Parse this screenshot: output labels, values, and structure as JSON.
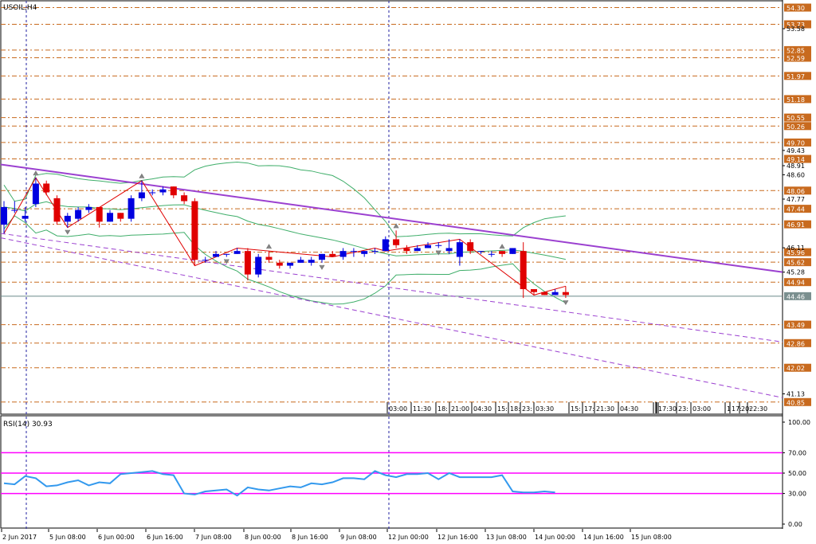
{
  "main_title": "USOIL,H4",
  "rsi_title": "RSI(14) 30.93",
  "colors": {
    "bull": "#0000e0",
    "bear": "#e00000",
    "trend": "#9b40d0",
    "bands": "#3fae6a",
    "rsi_line": "#3399ee",
    "rsi_levels": "#ff00ff",
    "level_lines": "#c86a1e",
    "price_tag": "#c86a1e",
    "grid": "#2020a0"
  },
  "price_axis": {
    "tags": [
      "54.30",
      "53.73",
      "52.85",
      "52.59",
      "51.97",
      "51.18",
      "50.55",
      "50.26",
      "49.70",
      "49.14",
      "48.06",
      "47.44",
      "46.91",
      "45.96",
      "45.62",
      "44.94",
      "43.49",
      "42.86",
      "42.02",
      "40.85"
    ],
    "plain": [
      "53.58",
      "49.43",
      "48.91",
      "48.60",
      "47.77",
      "46.11",
      "45.28",
      "41.13"
    ],
    "current": "44.46"
  },
  "rsi_axis": [
    "100.00",
    "70.00",
    "50.00",
    "30.00",
    "0.00"
  ],
  "session_labels": [
    "03:00",
    "11:30",
    "18:",
    "21:00",
    "04:30",
    "15:",
    "18:",
    "23:",
    "03:30",
    "15:",
    "17:",
    "21:30",
    "04:30",
    "17:30",
    "23:",
    "03:00",
    "1",
    "17:",
    "20:",
    "22:30"
  ],
  "time_axis": [
    "2 Jun 2017",
    "5 Jun 08:00",
    "6 Jun 00:00",
    "6 Jun 16:00",
    "7 Jun 08:00",
    "8 Jun 00:00",
    "8 Jun 16:00",
    "9 Jun 08:00",
    "12 Jun 00:00",
    "12 Jun 16:00",
    "13 Jun 08:00",
    "14 Jun 00:00",
    "14 Jun 16:00",
    "15 Jun 08:00"
  ],
  "chart_data": {
    "type": "candlestick",
    "symbol": "USOIL",
    "timeframe": "H4",
    "candles": [
      {
        "o": 46.9,
        "h": 47.7,
        "l": 46.6,
        "c": 47.5
      },
      {
        "o": 47.4,
        "h": 47.7,
        "l": 47.3,
        "c": 47.4
      },
      {
        "o": 47.1,
        "h": 47.5,
        "l": 47.0,
        "c": 47.2
      },
      {
        "o": 47.6,
        "h": 48.5,
        "l": 47.5,
        "c": 48.3
      },
      {
        "o": 48.3,
        "h": 48.4,
        "l": 47.9,
        "c": 48.0
      },
      {
        "o": 47.8,
        "h": 47.9,
        "l": 46.9,
        "c": 47.0
      },
      {
        "o": 47.0,
        "h": 47.3,
        "l": 46.8,
        "c": 47.2
      },
      {
        "o": 47.1,
        "h": 47.5,
        "l": 47.0,
        "c": 47.4
      },
      {
        "o": 47.4,
        "h": 47.6,
        "l": 47.3,
        "c": 47.5
      },
      {
        "o": 47.5,
        "h": 47.5,
        "l": 46.8,
        "c": 47.0
      },
      {
        "o": 47.0,
        "h": 47.4,
        "l": 47.0,
        "c": 47.3
      },
      {
        "o": 47.3,
        "h": 47.3,
        "l": 47.0,
        "c": 47.1
      },
      {
        "o": 47.1,
        "h": 47.9,
        "l": 47.0,
        "c": 47.8
      },
      {
        "o": 47.8,
        "h": 48.4,
        "l": 47.7,
        "c": 48.0
      },
      {
        "o": 48.0,
        "h": 48.1,
        "l": 47.9,
        "c": 48.0
      },
      {
        "o": 48.0,
        "h": 48.2,
        "l": 47.9,
        "c": 48.1
      },
      {
        "o": 48.2,
        "h": 48.2,
        "l": 47.8,
        "c": 47.9
      },
      {
        "o": 47.9,
        "h": 48.0,
        "l": 47.6,
        "c": 47.7
      },
      {
        "o": 47.7,
        "h": 47.8,
        "l": 45.5,
        "c": 45.7
      },
      {
        "o": 45.7,
        "h": 45.8,
        "l": 45.6,
        "c": 45.7
      },
      {
        "o": 45.8,
        "h": 46.0,
        "l": 45.8,
        "c": 45.9
      },
      {
        "o": 45.9,
        "h": 45.9,
        "l": 45.8,
        "c": 45.9
      },
      {
        "o": 45.9,
        "h": 46.1,
        "l": 45.9,
        "c": 46.0
      },
      {
        "o": 46.0,
        "h": 46.1,
        "l": 45.0,
        "c": 45.2
      },
      {
        "o": 45.2,
        "h": 45.9,
        "l": 45.1,
        "c": 45.8
      },
      {
        "o": 45.8,
        "h": 46.0,
        "l": 45.6,
        "c": 45.7
      },
      {
        "o": 45.6,
        "h": 45.7,
        "l": 45.4,
        "c": 45.5
      },
      {
        "o": 45.5,
        "h": 45.6,
        "l": 45.4,
        "c": 45.6
      },
      {
        "o": 45.6,
        "h": 45.8,
        "l": 45.6,
        "c": 45.7
      },
      {
        "o": 45.6,
        "h": 45.8,
        "l": 45.5,
        "c": 45.7
      },
      {
        "o": 45.7,
        "h": 45.9,
        "l": 45.6,
        "c": 45.9
      },
      {
        "o": 45.9,
        "h": 46.0,
        "l": 45.8,
        "c": 45.8
      },
      {
        "o": 45.8,
        "h": 46.1,
        "l": 45.7,
        "c": 46.0
      },
      {
        "o": 46.0,
        "h": 46.1,
        "l": 45.8,
        "c": 46.0
      },
      {
        "o": 45.9,
        "h": 46.0,
        "l": 45.8,
        "c": 46.0
      },
      {
        "o": 46.0,
        "h": 46.1,
        "l": 45.9,
        "c": 46.0
      },
      {
        "o": 46.0,
        "h": 46.5,
        "l": 46.0,
        "c": 46.4
      },
      {
        "o": 46.4,
        "h": 46.7,
        "l": 46.1,
        "c": 46.2
      },
      {
        "o": 46.1,
        "h": 46.2,
        "l": 45.9,
        "c": 46.0
      },
      {
        "o": 46.0,
        "h": 46.2,
        "l": 46.0,
        "c": 46.1
      },
      {
        "o": 46.1,
        "h": 46.3,
        "l": 46.1,
        "c": 46.2
      },
      {
        "o": 46.2,
        "h": 46.3,
        "l": 46.1,
        "c": 46.2
      },
      {
        "o": 46.0,
        "h": 46.4,
        "l": 45.9,
        "c": 46.1
      },
      {
        "o": 45.8,
        "h": 46.4,
        "l": 45.5,
        "c": 46.3
      },
      {
        "o": 46.3,
        "h": 46.4,
        "l": 45.9,
        "c": 46.0
      },
      {
        "o": 46.0,
        "h": 46.0,
        "l": 45.9,
        "c": 46.0
      },
      {
        "o": 45.9,
        "h": 46.0,
        "l": 45.8,
        "c": 45.9
      },
      {
        "o": 46.0,
        "h": 46.0,
        "l": 45.8,
        "c": 45.9
      },
      {
        "o": 45.9,
        "h": 46.1,
        "l": 45.9,
        "c": 46.1
      },
      {
        "o": 46.0,
        "h": 46.3,
        "l": 44.4,
        "c": 44.7
      },
      {
        "o": 44.7,
        "h": 44.7,
        "l": 44.5,
        "c": 44.6
      },
      {
        "o": 44.6,
        "h": 44.6,
        "l": 44.5,
        "c": 44.5
      },
      {
        "o": 44.5,
        "h": 44.7,
        "l": 44.5,
        "c": 44.6
      },
      {
        "o": 44.6,
        "h": 44.8,
        "l": 44.4,
        "c": 44.5
      }
    ],
    "rsi": [
      40,
      39,
      47,
      45,
      37,
      38,
      41,
      43,
      38,
      41,
      40,
      49,
      50,
      51,
      52,
      49,
      48,
      30,
      29,
      32,
      33,
      34,
      28,
      36,
      34,
      33,
      35,
      37,
      36,
      40,
      39,
      41,
      45,
      45,
      44,
      52,
      48,
      46,
      49,
      49,
      50,
      44,
      50,
      46,
      46,
      46,
      46,
      48,
      32,
      31,
      31,
      32,
      31
    ],
    "rsi_levels": [
      70,
      50,
      30
    ],
    "rsi_range": [
      0,
      100
    ],
    "price_range": [
      40.6,
      54.45
    ]
  }
}
